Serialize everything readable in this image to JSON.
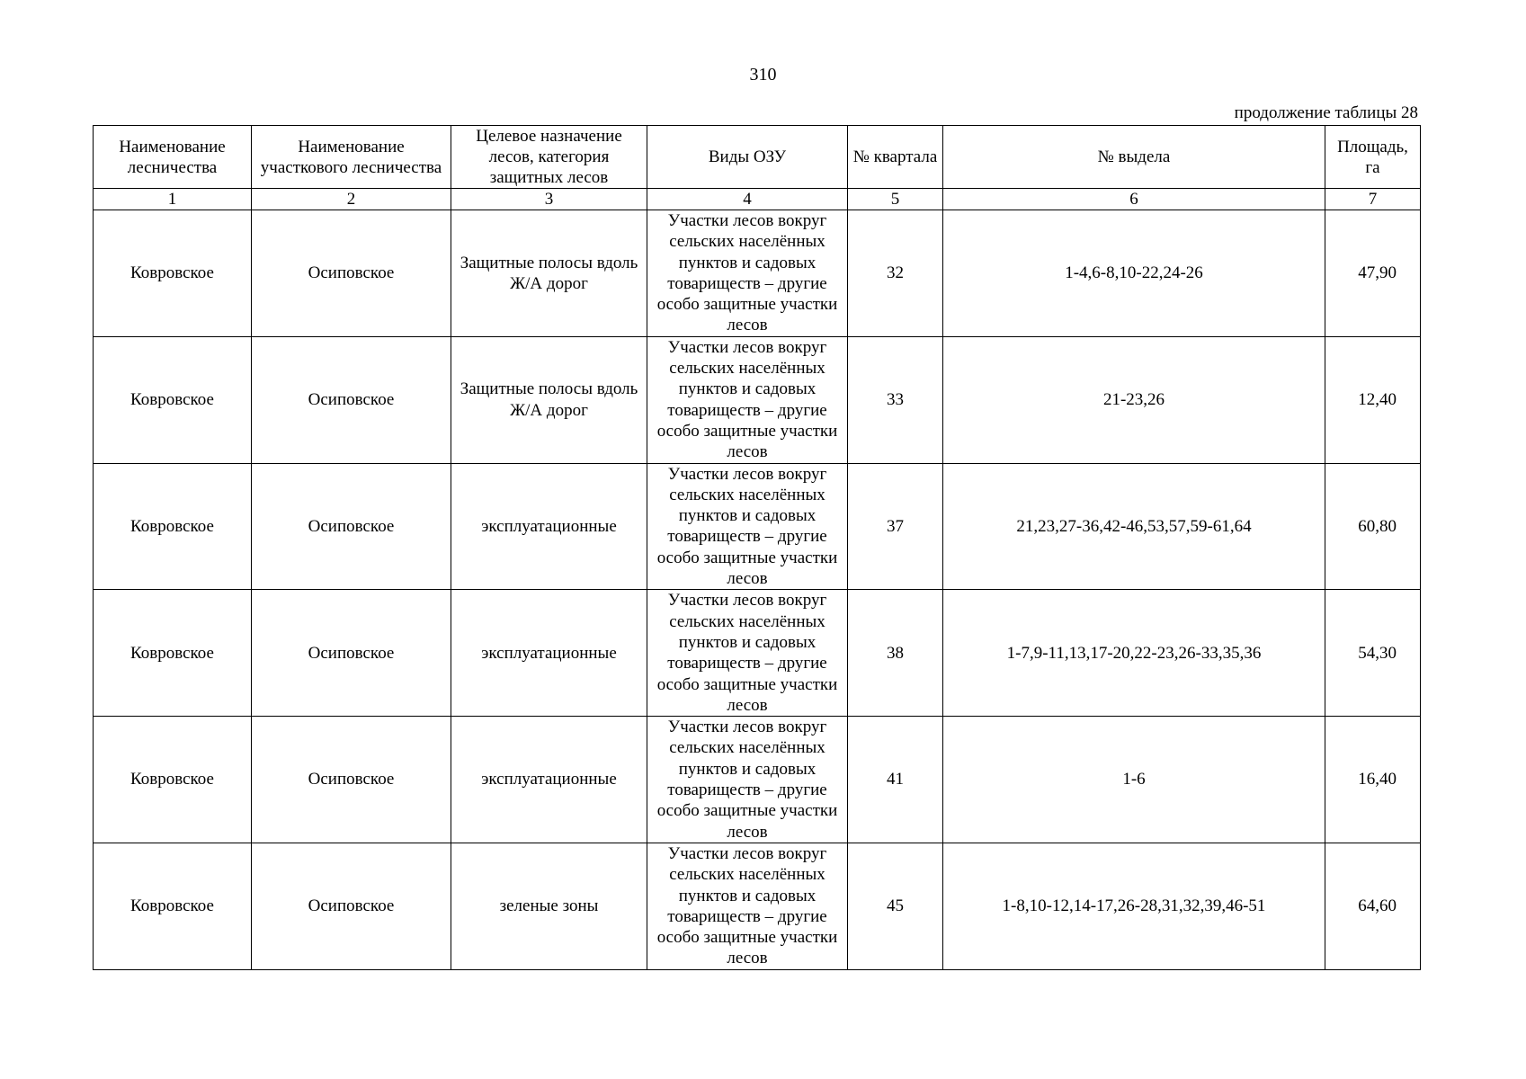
{
  "page_number": "310",
  "continuation": "продолжение таблицы 28",
  "headers": [
    "Наименование лесничества",
    "Наименование участкового лесничества",
    "Целевое назначение лесов, категория защитных лесов",
    "Виды ОЗУ",
    "№ квартала",
    "№ выдела",
    "Площадь, га"
  ],
  "column_numbers": [
    "1",
    "2",
    "3",
    "4",
    "5",
    "6",
    "7"
  ],
  "rows": [
    [
      "Ковровское",
      "Осиповское",
      "Защитные полосы вдоль Ж/А дорог",
      "Участки лесов вокруг сельских населённых пунктов и садовых товариществ – другие особо защитные участки лесов",
      "32",
      "1-4,6-8,10-22,24-26",
      "47,90"
    ],
    [
      "Ковровское",
      "Осиповское",
      "Защитные полосы вдоль Ж/А дорог",
      "Участки лесов вокруг сельских населённых пунктов и садовых товариществ – другие особо защитные участки лесов",
      "33",
      "21-23,26",
      "12,40"
    ],
    [
      "Ковровское",
      "Осиповское",
      "эксплуатационные",
      "Участки лесов вокруг сельских населённых пунктов и садовых товариществ – другие особо защитные участки лесов",
      "37",
      "21,23,27-36,42-46,53,57,59-61,64",
      "60,80"
    ],
    [
      "Ковровское",
      "Осиповское",
      "эксплуатационные",
      "Участки лесов вокруг сельских населённых пунктов и садовых товариществ – другие особо защитные участки лесов",
      "38",
      "1-7,9-11,13,17-20,22-23,26-33,35,36",
      "54,30"
    ],
    [
      "Ковровское",
      "Осиповское",
      "эксплуатационные",
      "Участки лесов вокруг сельских населённых пунктов и садовых товариществ – другие особо защитные участки лесов",
      "41",
      "1-6",
      "16,40"
    ],
    [
      "Ковровское",
      "Осиповское",
      "зеленые зоны",
      "Участки лесов вокруг сельских населённых пунктов и садовых товариществ – другие особо защитные участки лесов",
      "45",
      "1-8,10-12,14-17,26-28,31,32,39,46-51",
      "64,60"
    ]
  ]
}
